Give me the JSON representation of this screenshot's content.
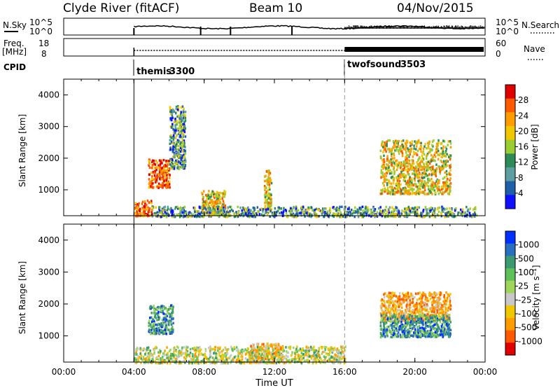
{
  "header": {
    "station": "Clyde River (fitACF)",
    "beam": "Beam 10",
    "date": "04/Nov/2015"
  },
  "strips": {
    "nsky_label": "N.Sky",
    "nsearch_label": "N.Search",
    "freq_label_1": "Freq.",
    "freq_label_2": "[MHz]",
    "nave_label": "Nave",
    "cpid_label": "CPID",
    "noise_left_ticks": [
      "10^5",
      "10^0"
    ],
    "noise_right_ticks": [
      "10^5",
      "10^0"
    ],
    "freq_ticks": [
      "18",
      "8"
    ],
    "nave_ticks": [
      "60",
      "0"
    ]
  },
  "cpid": [
    {
      "name": "themis",
      "id": "3300",
      "start_hour": 4.0
    },
    {
      "name": "twofsound",
      "id": "3503",
      "start_hour": 16.0
    }
  ],
  "colorbars": {
    "power": {
      "label": "Power [dB]",
      "ticks": [
        "28",
        "24",
        "20",
        "16",
        "12",
        "8",
        "4"
      ],
      "colors": [
        "#e00000",
        "#ff5a00",
        "#ff9d00",
        "#f0c800",
        "#9acd32",
        "#2e8b57",
        "#5f9ea0",
        "#1f5faa",
        "#1010ff"
      ]
    },
    "velocity": {
      "label": "Velocity [m s⁻¹]",
      "ticks": [
        "1000",
        "500",
        "100",
        "25",
        "-25",
        "-100",
        "-500",
        "-1000"
      ],
      "colors": [
        "#0030ff",
        "#2a6fbf",
        "#3c9a70",
        "#5fbf5a",
        "#9ed65a",
        "#c8c8c8",
        "#f0c800",
        "#ff9d00",
        "#ff5a00",
        "#e00000"
      ]
    }
  },
  "chart_data": {
    "type": "heatmap",
    "xlabel": "Time UT",
    "x_ticks": [
      "00:00",
      "04:00",
      "08:00",
      "12:00",
      "16:00",
      "20:00",
      "00:00"
    ],
    "x_range_hours": [
      0,
      24
    ],
    "ylabel": "Slant Range [km]",
    "y_ticks": [
      1000,
      2000,
      3000,
      4000
    ],
    "ylim": [
      180,
      4500
    ],
    "cpid_boundary_hour": 16.0,
    "power_patches": [
      {
        "t0": 4.8,
        "t1": 6.0,
        "r0": 1100,
        "r1": 2000,
        "level": "strong"
      },
      {
        "t0": 6.0,
        "t1": 6.9,
        "r0": 1700,
        "r1": 3700,
        "level": "weak"
      },
      {
        "t0": 4.0,
        "t1": 5.0,
        "r0": 200,
        "r1": 700,
        "level": "strong"
      },
      {
        "t0": 7.8,
        "t1": 9.2,
        "r0": 250,
        "r1": 1000,
        "level": "medium"
      },
      {
        "t0": 11.4,
        "t1": 11.8,
        "r0": 400,
        "r1": 1700,
        "level": "medium"
      },
      {
        "t0": 18.0,
        "t1": 22.0,
        "r0": 900,
        "r1": 2600,
        "level": "medium"
      },
      {
        "t0": 5.0,
        "t1": 23.5,
        "r0": 180,
        "r1": 500,
        "level": "weak"
      }
    ],
    "velocity_patches": [
      {
        "t0": 4.8,
        "t1": 6.2,
        "r0": 1100,
        "r1": 2000,
        "sign": "toward"
      },
      {
        "t0": 18.0,
        "t1": 22.0,
        "r0": 1500,
        "r1": 2400,
        "sign": "away"
      },
      {
        "t0": 18.0,
        "t1": 22.0,
        "r0": 1000,
        "r1": 1700,
        "sign": "toward"
      },
      {
        "t0": 10.5,
        "t1": 12.5,
        "r0": 200,
        "r1": 800,
        "sign": "away"
      },
      {
        "t0": 4.0,
        "t1": 16.0,
        "r0": 180,
        "r1": 700,
        "sign": "mixed"
      }
    ]
  }
}
